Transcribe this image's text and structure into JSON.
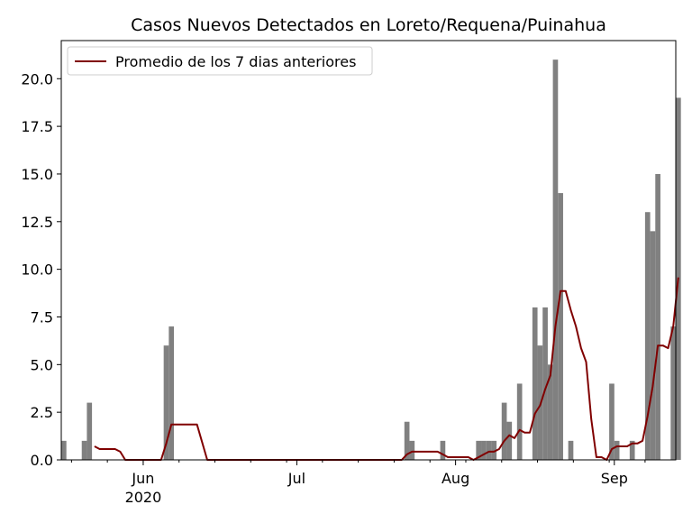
{
  "chart_data": {
    "type": "bar",
    "title": "Casos Nuevos Detectados en Loreto/Requena/Puinahua",
    "xlabel": "",
    "ylabel": "",
    "ylim": [
      0,
      22
    ],
    "grid": false,
    "legend": {
      "placement": "top-left",
      "entries": [
        "Promedio de los 7 dias anteriores"
      ]
    },
    "x_ticks": [
      {
        "date": "2020-06-01",
        "label": "Jun",
        "sublabel": "2020"
      },
      {
        "date": "2020-07-01",
        "label": "Jul",
        "sublabel": ""
      },
      {
        "date": "2020-08-01",
        "label": "Aug",
        "sublabel": ""
      },
      {
        "date": "2020-09-01",
        "label": "Sep",
        "sublabel": ""
      }
    ],
    "y_ticks": [
      0.0,
      2.5,
      5.0,
      7.5,
      10.0,
      12.5,
      15.0,
      17.5,
      20.0
    ],
    "y_tick_labels": [
      "0.0",
      "2.5",
      "5.0",
      "7.5",
      "10.0",
      "12.5",
      "15.0",
      "17.5",
      "20.0"
    ],
    "xlim": [
      "2020-05-16",
      "2020-09-13"
    ],
    "bar_color": "#808080",
    "line_color": "#800000",
    "series": [
      {
        "kind": "bar",
        "values": [
          [
            "2020-05-16",
            1
          ],
          [
            "2020-05-20",
            1
          ],
          [
            "2020-05-21",
            3
          ],
          [
            "2020-06-05",
            6
          ],
          [
            "2020-06-06",
            7
          ],
          [
            "2020-07-22",
            2
          ],
          [
            "2020-07-23",
            1
          ],
          [
            "2020-07-29",
            1
          ],
          [
            "2020-08-05",
            1
          ],
          [
            "2020-08-06",
            1
          ],
          [
            "2020-08-07",
            1
          ],
          [
            "2020-08-08",
            1
          ],
          [
            "2020-08-10",
            3
          ],
          [
            "2020-08-11",
            2
          ],
          [
            "2020-08-13",
            4
          ],
          [
            "2020-08-16",
            8
          ],
          [
            "2020-08-17",
            6
          ],
          [
            "2020-08-18",
            8
          ],
          [
            "2020-08-19",
            5
          ],
          [
            "2020-08-20",
            21
          ],
          [
            "2020-08-21",
            14
          ],
          [
            "2020-08-23",
            1
          ],
          [
            "2020-08-31",
            4
          ],
          [
            "2020-09-01",
            1
          ],
          [
            "2020-09-04",
            1
          ],
          [
            "2020-09-07",
            13
          ],
          [
            "2020-09-08",
            12
          ],
          [
            "2020-09-09",
            15
          ],
          [
            "2020-09-12",
            7
          ],
          [
            "2020-09-13",
            19
          ]
        ]
      },
      {
        "kind": "line",
        "name": "Promedio de los 7 dias anteriores",
        "values": [
          [
            "2020-05-22",
            0.71
          ],
          [
            "2020-05-23",
            0.57
          ],
          [
            "2020-05-24",
            0.57
          ],
          [
            "2020-05-25",
            0.57
          ],
          [
            "2020-05-26",
            0.57
          ],
          [
            "2020-05-27",
            0.43
          ],
          [
            "2020-05-28",
            0.0
          ],
          [
            "2020-05-29",
            0.0
          ],
          [
            "2020-05-30",
            0.0
          ],
          [
            "2020-05-31",
            0.0
          ],
          [
            "2020-06-01",
            0.0
          ],
          [
            "2020-06-02",
            0.0
          ],
          [
            "2020-06-03",
            0.0
          ],
          [
            "2020-06-04",
            0.0
          ],
          [
            "2020-06-05",
            0.86
          ],
          [
            "2020-06-06",
            1.86
          ],
          [
            "2020-06-07",
            1.86
          ],
          [
            "2020-06-08",
            1.86
          ],
          [
            "2020-06-09",
            1.86
          ],
          [
            "2020-06-10",
            1.86
          ],
          [
            "2020-06-11",
            1.86
          ],
          [
            "2020-06-12",
            0.93
          ],
          [
            "2020-06-13",
            0.0
          ],
          [
            "2020-06-14",
            0.0
          ],
          [
            "2020-07-21",
            0.0
          ],
          [
            "2020-07-22",
            0.29
          ],
          [
            "2020-07-23",
            0.43
          ],
          [
            "2020-07-24",
            0.43
          ],
          [
            "2020-07-25",
            0.43
          ],
          [
            "2020-07-26",
            0.43
          ],
          [
            "2020-07-27",
            0.43
          ],
          [
            "2020-07-28",
            0.43
          ],
          [
            "2020-07-29",
            0.29
          ],
          [
            "2020-07-30",
            0.14
          ],
          [
            "2020-07-31",
            0.14
          ],
          [
            "2020-08-01",
            0.14
          ],
          [
            "2020-08-02",
            0.14
          ],
          [
            "2020-08-03",
            0.14
          ],
          [
            "2020-08-04",
            0.0
          ],
          [
            "2020-08-05",
            0.14
          ],
          [
            "2020-08-06",
            0.29
          ],
          [
            "2020-08-07",
            0.43
          ],
          [
            "2020-08-08",
            0.43
          ],
          [
            "2020-08-09",
            0.57
          ],
          [
            "2020-08-10",
            1.0
          ],
          [
            "2020-08-11",
            1.29
          ],
          [
            "2020-08-12",
            1.14
          ],
          [
            "2020-08-13",
            1.57
          ],
          [
            "2020-08-14",
            1.43
          ],
          [
            "2020-08-15",
            1.43
          ],
          [
            "2020-08-16",
            2.43
          ],
          [
            "2020-08-17",
            2.86
          ],
          [
            "2020-08-18",
            3.71
          ],
          [
            "2020-08-19",
            4.43
          ],
          [
            "2020-08-20",
            7.0
          ],
          [
            "2020-08-21",
            8.86
          ],
          [
            "2020-08-22",
            8.86
          ],
          [
            "2020-08-23",
            7.86
          ],
          [
            "2020-08-24",
            7.0
          ],
          [
            "2020-08-25",
            5.86
          ],
          [
            "2020-08-26",
            5.14
          ],
          [
            "2020-08-27",
            2.14
          ],
          [
            "2020-08-28",
            0.14
          ],
          [
            "2020-08-29",
            0.14
          ],
          [
            "2020-08-30",
            0.0
          ],
          [
            "2020-08-31",
            0.57
          ],
          [
            "2020-09-01",
            0.71
          ],
          [
            "2020-09-02",
            0.71
          ],
          [
            "2020-09-03",
            0.71
          ],
          [
            "2020-09-04",
            0.86
          ],
          [
            "2020-09-05",
            0.86
          ],
          [
            "2020-09-06",
            1.0
          ],
          [
            "2020-09-07",
            2.29
          ],
          [
            "2020-09-08",
            3.86
          ],
          [
            "2020-09-09",
            6.0
          ],
          [
            "2020-09-10",
            6.0
          ],
          [
            "2020-09-11",
            5.86
          ],
          [
            "2020-09-12",
            7.0
          ],
          [
            "2020-09-13",
            9.57
          ]
        ]
      }
    ]
  }
}
